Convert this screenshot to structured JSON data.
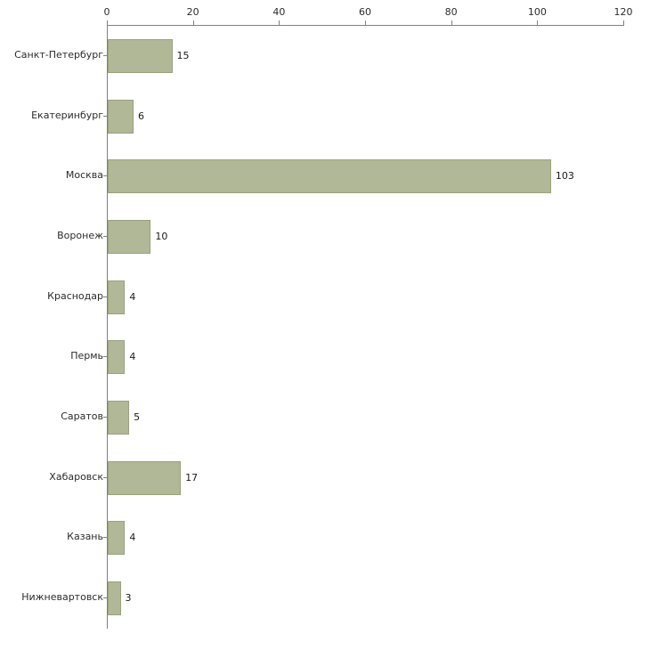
{
  "chart_data": {
    "type": "bar",
    "orientation": "horizontal",
    "title": "",
    "xlabel": "",
    "ylabel": "",
    "categories": [
      "Санкт-Петербург",
      "Екатеринбург",
      "Москва",
      "Воронеж",
      "Краснодар",
      "Пермь",
      "Саратов",
      "Хабаровск",
      "Казань",
      "Нижневартовск"
    ],
    "values": [
      15,
      6,
      103,
      10,
      4,
      4,
      5,
      17,
      4,
      3
    ],
    "xlim": [
      0,
      120
    ],
    "xticks": [
      0,
      20,
      40,
      60,
      80,
      100,
      120
    ],
    "grid": false,
    "legend": "none",
    "axis_position": "top",
    "bar_color": "#b0b897",
    "bar_border_color": "#99a27c",
    "axis_color": "#808080",
    "text_color": "#2b2b2b",
    "background_color": "#ffffff"
  }
}
